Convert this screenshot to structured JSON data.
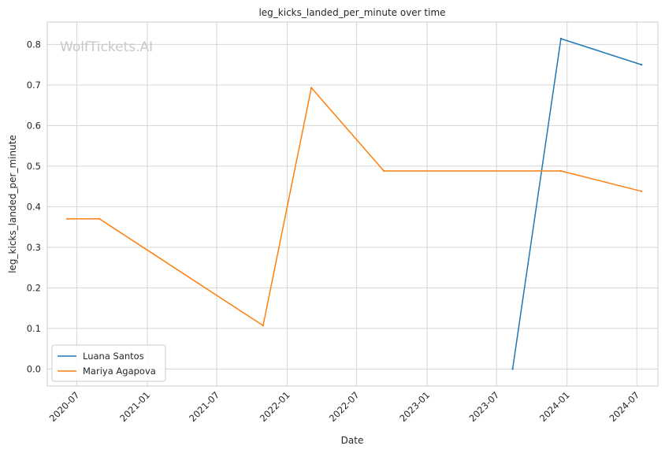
{
  "chart_data": {
    "type": "line",
    "title": "leg_kicks_landed_per_minute over time",
    "xlabel": "Date",
    "ylabel": "leg_kicks_landed_per_minute",
    "watermark": "WolfTickets.AI",
    "x_ticks": [
      "2020-07",
      "2021-01",
      "2021-07",
      "2022-01",
      "2022-07",
      "2023-01",
      "2023-07",
      "2024-01",
      "2024-07"
    ],
    "y_ticks": [
      "0.0",
      "0.1",
      "0.2",
      "0.3",
      "0.4",
      "0.5",
      "0.6",
      "0.7",
      "0.8"
    ],
    "xlim": [
      "2020-04-15",
      "2024-08-25"
    ],
    "ylim": [
      -0.042,
      0.855
    ],
    "grid": true,
    "legend_position": "bottom-left",
    "series": [
      {
        "name": "Luana Santos",
        "color": "#1f77b4",
        "points": [
          {
            "x": "2023-08-12",
            "y": 0.0
          },
          {
            "x": "2023-12-16",
            "y": 0.814
          },
          {
            "x": "2024-07-13",
            "y": 0.75
          }
        ]
      },
      {
        "name": "Mariya Agapova",
        "color": "#ff7f0e",
        "points": [
          {
            "x": "2020-06-06",
            "y": 0.37
          },
          {
            "x": "2020-08-29",
            "y": 0.37
          },
          {
            "x": "2021-10-30",
            "y": 0.107
          },
          {
            "x": "2022-03-05",
            "y": 0.693
          },
          {
            "x": "2022-09-10",
            "y": 0.488
          },
          {
            "x": "2023-12-16",
            "y": 0.488
          },
          {
            "x": "2024-07-13",
            "y": 0.438
          }
        ]
      }
    ]
  }
}
